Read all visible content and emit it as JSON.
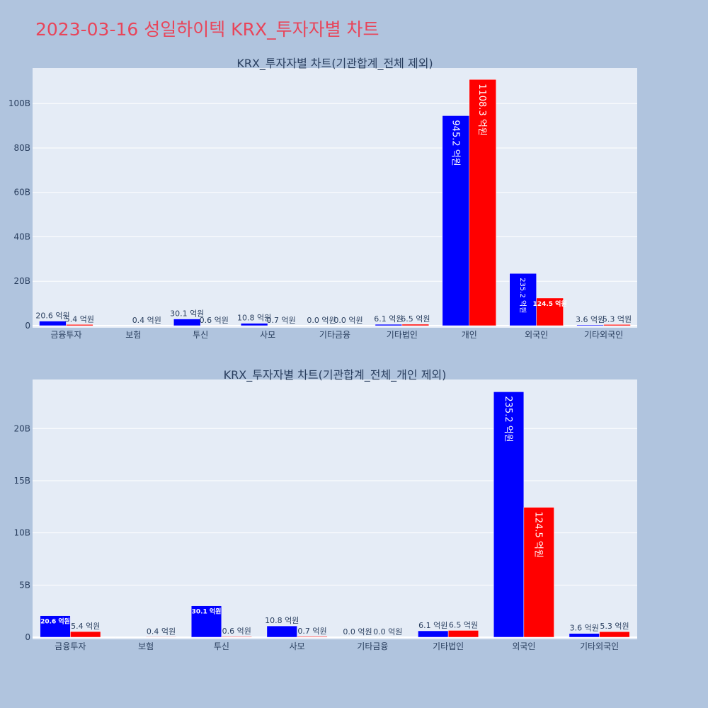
{
  "title": "2023-03-16 성일하이텍 KRX_투자자별 차트",
  "colors": {
    "buy": "#0000ff",
    "sell": "#ff0000",
    "page_bg": "#b0c4de",
    "plot_bg": "#e5ecf6",
    "title": "#e8455a"
  },
  "chart_data": [
    {
      "type": "bar",
      "title": "KRX_투자자별 차트(기관합계_전체 제외)",
      "categories": [
        "금융투자",
        "보험",
        "투신",
        "사모",
        "기타금융",
        "기타법인",
        "개인",
        "외국인",
        "기타외국인"
      ],
      "series": [
        {
          "values": [
            2.06,
            0,
            3.01,
            1.08,
            0.0,
            0.61,
            94.52,
            23.52,
            0.36
          ],
          "labels": [
            "20.6 억원",
            "",
            "30.1 억원",
            "10.8 억원",
            "0.0 억원",
            "6.1 억원",
            "945.2 억원",
            "235.2 억원",
            "3.6 억원"
          ]
        },
        {
          "values": [
            0.54,
            0.04,
            0.06,
            0.07,
            0.0,
            0.65,
            110.83,
            12.45,
            0.53
          ],
          "labels": [
            "5.4 억원",
            "0.4 억원",
            "0.6 억원",
            "0.7 억원",
            "0.0 억원",
            "6.5 억원",
            "1108.3 억원",
            "124.5 억원",
            "5.3 억원"
          ]
        }
      ],
      "yticks": [
        0,
        20,
        40,
        60,
        80,
        100
      ],
      "ytick_labels": [
        "0",
        "20B",
        "40B",
        "60B",
        "80B",
        "100B"
      ],
      "ylim": [
        0,
        116
      ]
    },
    {
      "type": "bar",
      "title": "KRX_투자자별 차트(기관합계_전체_개인 제외)",
      "categories": [
        "금융투자",
        "보험",
        "투신",
        "사모",
        "기타금융",
        "기타법인",
        "외국인",
        "기타외국인"
      ],
      "series": [
        {
          "values": [
            2.06,
            0,
            3.01,
            1.08,
            0.0,
            0.61,
            23.52,
            0.36
          ],
          "labels": [
            "20.6 억원",
            "",
            "30.1 억원",
            "10.8 억원",
            "0.0 억원",
            "6.1 억원",
            "235.2 억원",
            "3.6 억원"
          ]
        },
        {
          "values": [
            0.54,
            0.04,
            0.06,
            0.07,
            0.0,
            0.65,
            12.45,
            0.53
          ],
          "labels": [
            "5.4 억원",
            "0.4 억원",
            "0.6 억원",
            "0.7 억원",
            "0.0 억원",
            "6.5 억원",
            "124.5 억원",
            "5.3 억원"
          ]
        }
      ],
      "yticks": [
        0,
        5,
        10,
        15,
        20
      ],
      "ytick_labels": [
        "0",
        "5B",
        "10B",
        "15B",
        "20B"
      ],
      "ylim": [
        0,
        24.7
      ]
    }
  ]
}
